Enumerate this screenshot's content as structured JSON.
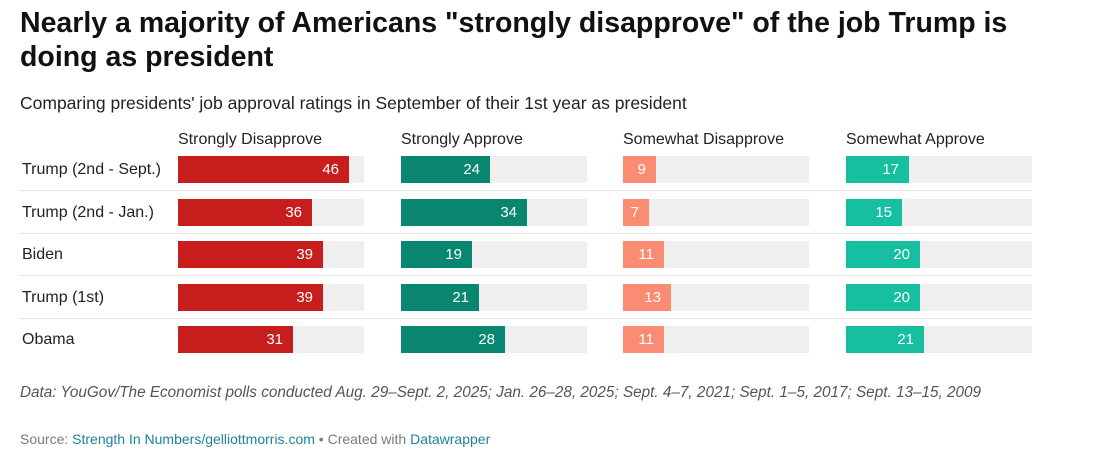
{
  "header": {
    "title": "Nearly a majority of Americans \"strongly disapprove\" of the job Trump is doing as president",
    "subtitle": "Comparing presidents' job approval ratings in September of their 1st year as president"
  },
  "footer": {
    "notes": "Data: YouGov/The Economist polls conducted Aug. 29–Sept. 2, 2025; Jan. 26–28, 2025; Sept. 4–7, 2021; Sept. 1–5, 2017; Sept. 13–15, 2009",
    "source_prefix": "Source: ",
    "source_link": "Strength In Numbers/gelliottmorris.com",
    "separator": " • Created with ",
    "tool_link": "Datawrapper"
  },
  "chart_data": {
    "type": "bar",
    "orientation": "horizontal",
    "layout": "split-bars",
    "categories": [
      "Trump (2nd - Sept.)",
      "Trump (2nd - Jan.)",
      "Biden",
      "Trump (1st)",
      "Obama"
    ],
    "xlim": [
      0,
      50
    ],
    "grid": false,
    "legend": "none",
    "series": [
      {
        "name": "Strongly Disapprove",
        "color": "#c71e1d",
        "values": [
          46,
          36,
          39,
          39,
          31
        ]
      },
      {
        "name": "Strongly Approve",
        "color": "#09866f",
        "values": [
          24,
          34,
          19,
          21,
          28
        ]
      },
      {
        "name": "Somewhat Disapprove",
        "color": "#fa8c73",
        "values": [
          9,
          7,
          11,
          13,
          11
        ]
      },
      {
        "name": "Somewhat Approve",
        "color": "#15bfa0",
        "values": [
          17,
          15,
          20,
          20,
          21
        ]
      }
    ]
  }
}
